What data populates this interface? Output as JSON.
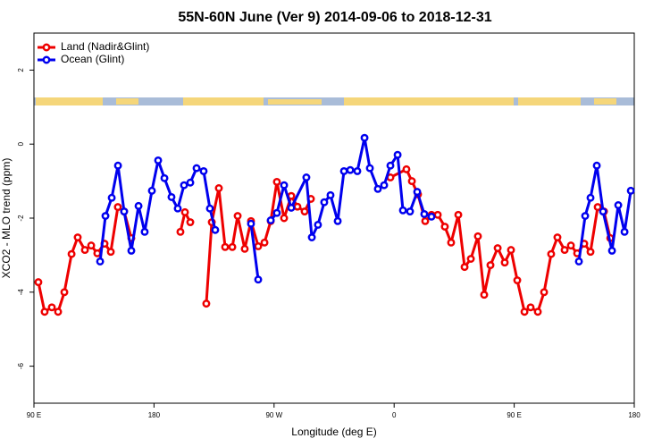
{
  "chart_data": {
    "type": "line",
    "title": "55N-60N June (Ver 9)   2014-09-06 to 2018-12-31",
    "x_label": "Longitude (deg E)",
    "y_label": "XCO2 - MLO trend (ppm)",
    "xlim": [
      90,
      540
    ],
    "ylim": [
      -7,
      3
    ],
    "xticks": [
      {
        "value": 90,
        "label": "90 E"
      },
      180,
      {
        "value": 270,
        "label": "90 W"
      },
      {
        "value": 360,
        "label": "0"
      },
      {
        "value": 450,
        "label": "90 E"
      },
      {
        "value": 540,
        "label": "180"
      }
    ],
    "yticks": [
      2,
      0,
      -2,
      -4,
      -6
    ],
    "legend": "top-left",
    "series": [
      {
        "name": "Land (Nadir&Glint)",
        "color": "#ee0000",
        "x": [
          93.3,
          98.0,
          103.4,
          108.1,
          112.8,
          118.2,
          122.8,
          128.2,
          132.9,
          137.5,
          142.9,
          147.6,
          152.9,
          157.6,
          163.0,
          null,
          199.8,
          203.2,
          207.2,
          null,
          219.2,
          223.3,
          228.6,
          233.3,
          238.7,
          242.7,
          248.0,
          252.7,
          258.1,
          262.8,
          267.5,
          272.1,
          277.5,
          282.9,
          287.5,
          292.9,
          297.6,
          null,
          357.2,
          369.2,
          373.3,
          377.9,
          383.3,
          388.0,
          392.7,
          398.0,
          402.7,
          408.1,
          412.8,
          417.5,
          422.8,
          427.5,
          432.2,
          437.6,
          442.9,
          447.6,
          452.3,
          457.7,
          462.3,
          467.7,
          472.4,
          477.7,
          482.4,
          487.8,
          492.5,
          497.2,
          502.5,
          507.2,
          512.6,
          517.3,
          522.0
        ],
        "values": [
          -3.73,
          -4.53,
          -4.41,
          -4.53,
          -4.0,
          -2.97,
          -2.52,
          -2.86,
          -2.74,
          -2.95,
          -2.69,
          -2.91,
          -1.7,
          -1.82,
          -2.54,
          null,
          -2.37,
          -1.84,
          -2.11,
          null,
          -4.31,
          -2.11,
          -1.19,
          -2.78,
          -2.78,
          -1.94,
          -2.83,
          -2.08,
          -2.76,
          -2.66,
          -2.08,
          -1.02,
          -2.0,
          -1.4,
          -1.69,
          -1.82,
          -1.48,
          null,
          -0.9,
          -0.68,
          -1.0,
          -1.36,
          -2.08,
          -1.91,
          -1.91,
          -2.23,
          -2.66,
          -1.91,
          -3.32,
          -3.1,
          -2.49,
          -4.07,
          -3.27,
          -2.81,
          -3.2,
          -2.86,
          -3.68,
          -4.53,
          -4.41,
          -4.53,
          -4.0,
          -2.97,
          -2.52,
          -2.86,
          -2.74,
          -2.95,
          -2.69,
          -2.91,
          -1.7,
          -1.82,
          -2.54
        ]
      },
      {
        "name": "Ocean (Glint)",
        "color": "#0000ee",
        "x": [
          139.6,
          143.6,
          148.3,
          153.0,
          157.6,
          163.0,
          168.4,
          173.0,
          178.4,
          183.1,
          187.8,
          193.1,
          197.8,
          202.5,
          207.2,
          211.9,
          217.2,
          221.9,
          225.9,
          null,
          252.7,
          258.1,
          null,
          267.5,
          272.1,
          277.5,
          282.9,
          294.2,
          298.3,
          302.9,
          307.6,
          312.3,
          317.7,
          322.4,
          327.1,
          332.4,
          337.8,
          341.8,
          347.8,
          352.5,
          357.2,
          362.6,
          366.6,
          371.9,
          377.3,
          382.6,
          388.0,
          null,
          498.5,
          503.2,
          507.2,
          511.9,
          516.6,
          523.3,
          528.0,
          532.7,
          537.4
        ],
        "values": [
          -3.17,
          -1.94,
          -1.45,
          -0.58,
          -1.82,
          -2.88,
          -1.67,
          -2.37,
          -1.26,
          -0.44,
          -0.92,
          -1.43,
          -1.74,
          -1.11,
          -1.04,
          -0.65,
          -0.73,
          -1.74,
          -2.32,
          null,
          -2.15,
          -3.66,
          null,
          -2.06,
          -1.86,
          -1.11,
          -1.72,
          -0.9,
          -2.52,
          -2.18,
          -1.57,
          -1.38,
          -2.08,
          -0.73,
          -0.7,
          -0.73,
          0.17,
          -0.65,
          -1.21,
          -1.11,
          -0.58,
          -0.29,
          -1.79,
          -1.82,
          -1.29,
          -1.89,
          -1.96,
          null,
          -3.17,
          -1.94,
          -1.45,
          -0.58,
          -1.82,
          -2.88,
          -1.65,
          -2.37,
          -1.26
        ]
      }
    ]
  }
}
